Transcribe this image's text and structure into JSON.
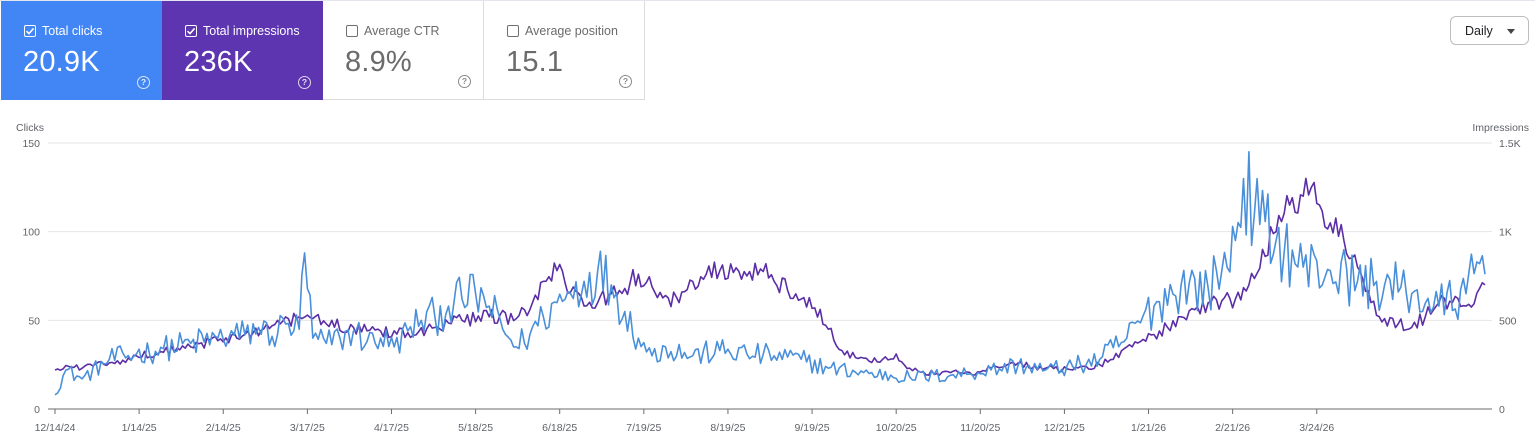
{
  "filter": {
    "label": "Daily"
  },
  "metrics": [
    {
      "label": "Total clicks",
      "value": "20.9K",
      "checked": true,
      "color": "#4285f4"
    },
    {
      "label": "Total impressions",
      "value": "236K",
      "checked": true,
      "color": "#5e35b1"
    },
    {
      "label": "Average CTR",
      "value": "8.9%",
      "checked": false
    },
    {
      "label": "Average position",
      "value": "15.1",
      "checked": false
    }
  ],
  "chart_data": {
    "type": "line",
    "left_axis_label": "Clicks",
    "right_axis_label": "Impressions",
    "left_ticks": [
      "0",
      "50",
      "100",
      "150"
    ],
    "right_ticks": [
      "0",
      "500",
      "1K",
      "1.5K"
    ],
    "ylim_left": [
      0,
      150
    ],
    "ylim_right": [
      0,
      1500
    ],
    "grid": true,
    "x_ticks": [
      "12/14/24",
      "1/14/25",
      "2/14/25",
      "3/17/25",
      "4/17/25",
      "5/18/25",
      "6/18/25",
      "7/19/25",
      "8/19/25",
      "9/19/25",
      "10/20/25",
      "11/20/25",
      "12/21/25",
      "1/21/26",
      "2/21/26",
      "3/24/26"
    ],
    "series": [
      {
        "name": "Total clicks",
        "axis": "left",
        "color": "#4a8fd9",
        "anchors": [
          [
            0,
            8
          ],
          [
            4,
            22
          ],
          [
            10,
            17
          ],
          [
            20,
            28
          ],
          [
            30,
            31
          ],
          [
            40,
            34
          ],
          [
            50,
            37
          ],
          [
            60,
            40
          ],
          [
            70,
            42
          ],
          [
            75,
            46
          ],
          [
            80,
            41
          ],
          [
            85,
            48
          ],
          [
            90,
            45
          ],
          [
            92,
            88
          ],
          [
            95,
            40
          ],
          [
            100,
            37
          ],
          [
            105,
            40
          ],
          [
            110,
            44
          ],
          [
            115,
            38
          ],
          [
            120,
            40
          ],
          [
            125,
            35
          ],
          [
            130,
            44
          ],
          [
            135,
            50
          ],
          [
            140,
            52
          ],
          [
            145,
            58
          ],
          [
            150,
            62
          ],
          [
            155,
            65
          ],
          [
            160,
            58
          ],
          [
            165,
            45
          ],
          [
            170,
            35
          ],
          [
            175,
            42
          ],
          [
            180,
            52
          ],
          [
            185,
            60
          ],
          [
            190,
            65
          ],
          [
            195,
            72
          ],
          [
            200,
            78
          ],
          [
            205,
            70
          ],
          [
            210,
            55
          ],
          [
            215,
            40
          ],
          [
            220,
            30
          ],
          [
            225,
            35
          ],
          [
            235,
            30
          ],
          [
            245,
            33
          ],
          [
            255,
            31
          ],
          [
            265,
            30
          ],
          [
            275,
            28
          ],
          [
            285,
            23
          ],
          [
            300,
            20
          ],
          [
            315,
            18
          ],
          [
            330,
            19
          ],
          [
            345,
            22
          ],
          [
            355,
            25
          ],
          [
            365,
            22
          ],
          [
            375,
            24
          ],
          [
            385,
            28
          ],
          [
            395,
            40
          ],
          [
            405,
            58
          ],
          [
            415,
            70
          ],
          [
            425,
            68
          ],
          [
            430,
            78
          ],
          [
            435,
            95
          ],
          [
            438,
            130
          ],
          [
            442,
            110
          ],
          [
            450,
            95
          ],
          [
            460,
            80
          ],
          [
            470,
            78
          ],
          [
            480,
            72
          ],
          [
            490,
            70
          ],
          [
            500,
            65
          ],
          [
            510,
            58
          ],
          [
            520,
            65
          ],
          [
            525,
            82
          ],
          [
            527,
            76
          ]
        ]
      },
      {
        "name": "Total impressions",
        "axis": "right",
        "color": "#5b2ea6",
        "anchors": [
          [
            0,
            220
          ],
          [
            5,
            240
          ],
          [
            10,
            230
          ],
          [
            15,
            255
          ],
          [
            20,
            260
          ],
          [
            25,
            275
          ],
          [
            30,
            300
          ],
          [
            40,
            320
          ],
          [
            50,
            350
          ],
          [
            60,
            385
          ],
          [
            70,
            420
          ],
          [
            80,
            470
          ],
          [
            90,
            520
          ],
          [
            95,
            510
          ],
          [
            100,
            480
          ],
          [
            110,
            460
          ],
          [
            120,
            440
          ],
          [
            130,
            430
          ],
          [
            140,
            460
          ],
          [
            150,
            500
          ],
          [
            160,
            520
          ],
          [
            170,
            510
          ],
          [
            175,
            560
          ],
          [
            180,
            720
          ],
          [
            185,
            780
          ],
          [
            190,
            660
          ],
          [
            195,
            580
          ],
          [
            200,
            600
          ],
          [
            205,
            650
          ],
          [
            210,
            680
          ],
          [
            215,
            760
          ],
          [
            220,
            690
          ],
          [
            225,
            640
          ],
          [
            230,
            600
          ],
          [
            235,
            720
          ],
          [
            240,
            760
          ],
          [
            245,
            780
          ],
          [
            250,
            770
          ],
          [
            255,
            750
          ],
          [
            260,
            790
          ],
          [
            265,
            720
          ],
          [
            270,
            670
          ],
          [
            275,
            620
          ],
          [
            280,
            570
          ],
          [
            285,
            450
          ],
          [
            290,
            330
          ],
          [
            295,
            290
          ],
          [
            300,
            270
          ],
          [
            305,
            280
          ],
          [
            310,
            310
          ],
          [
            315,
            230
          ],
          [
            320,
            210
          ],
          [
            325,
            200
          ],
          [
            330,
            205
          ],
          [
            335,
            200
          ],
          [
            340,
            210
          ],
          [
            345,
            230
          ],
          [
            350,
            240
          ],
          [
            355,
            260
          ],
          [
            365,
            230
          ],
          [
            375,
            220
          ],
          [
            385,
            250
          ],
          [
            390,
            280
          ],
          [
            395,
            350
          ],
          [
            400,
            380
          ],
          [
            405,
            420
          ],
          [
            410,
            460
          ],
          [
            415,
            520
          ],
          [
            420,
            560
          ],
          [
            425,
            600
          ],
          [
            430,
            610
          ],
          [
            435,
            620
          ],
          [
            440,
            700
          ],
          [
            445,
            900
          ],
          [
            450,
            1000
          ],
          [
            455,
            1150
          ],
          [
            460,
            1200
          ],
          [
            463,
            1250
          ],
          [
            466,
            1150
          ],
          [
            470,
            1050
          ],
          [
            475,
            950
          ],
          [
            480,
            800
          ],
          [
            485,
            600
          ],
          [
            490,
            510
          ],
          [
            495,
            480
          ],
          [
            500,
            460
          ],
          [
            505,
            520
          ],
          [
            510,
            600
          ],
          [
            515,
            600
          ],
          [
            520,
            580
          ],
          [
            525,
            680
          ],
          [
            527,
            700
          ]
        ]
      }
    ]
  }
}
